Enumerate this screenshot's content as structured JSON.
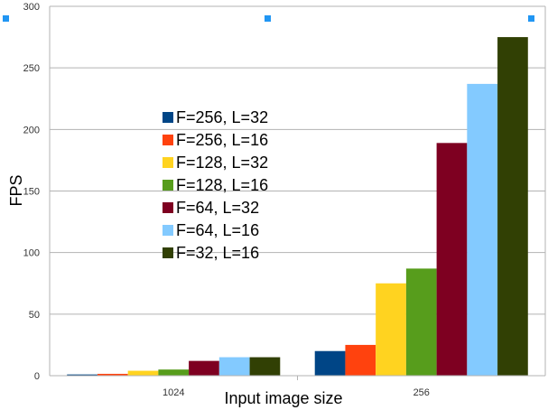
{
  "chart_data": {
    "type": "bar",
    "title": "",
    "xlabel": "Input image size",
    "ylabel": "FPS",
    "categories": [
      "1024",
      "256"
    ],
    "ylim": [
      0,
      300
    ],
    "yticks": [
      0,
      50,
      100,
      150,
      200,
      250,
      300
    ],
    "grid": true,
    "legend_position": "center-left",
    "series": [
      {
        "name": "F=256, L=32",
        "color": "#004586",
        "values": [
          1,
          20
        ]
      },
      {
        "name": "F=256, L=16",
        "color": "#ff420e",
        "values": [
          1.5,
          25
        ]
      },
      {
        "name": "F=128, L=32",
        "color": "#ffd320",
        "values": [
          4,
          75
        ]
      },
      {
        "name": "F=128, L=16",
        "color": "#579d1c",
        "values": [
          5,
          87
        ]
      },
      {
        "name": "F=64, L=32",
        "color": "#7e0021",
        "values": [
          12,
          189
        ]
      },
      {
        "name": "F=64, L=16",
        "color": "#83caff",
        "values": [
          15,
          237
        ]
      },
      {
        "name": "F=32, L=16",
        "color": "#314004",
        "values": [
          15,
          275
        ]
      }
    ]
  },
  "selection_handle_color": "#2196f3"
}
